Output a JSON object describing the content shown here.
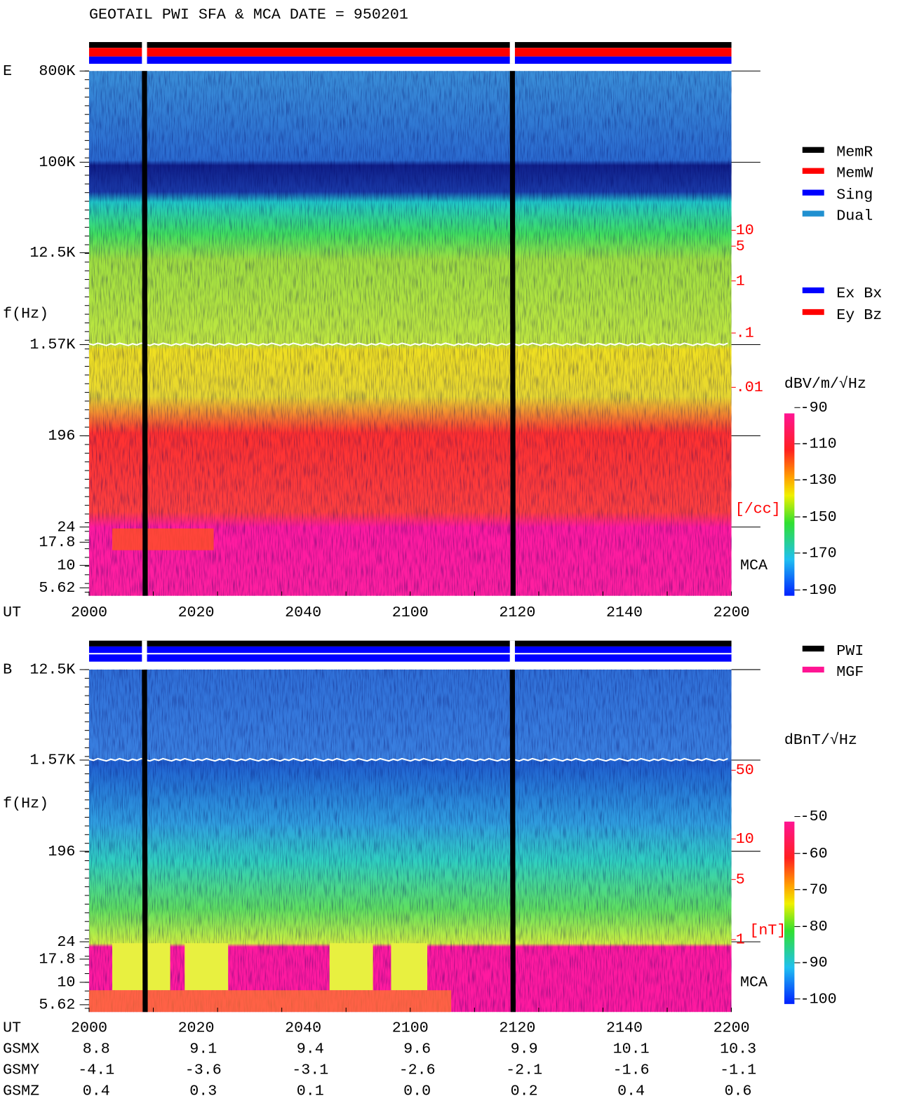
{
  "title": "GEOTAIL  PWI SFA & MCA   DATE = 950201",
  "panels": [
    {
      "component": "E",
      "y_label": "f(Hz)",
      "y_ticks": [
        "800K",
        "100K",
        "12.5K",
        "1.57K",
        "196",
        "24",
        "17.8",
        "10",
        "5.62"
      ],
      "x_label": "UT",
      "x_ticks": [
        "2000",
        "2020",
        "2040",
        "2100",
        "2120",
        "2140",
        "2200"
      ],
      "density_ticks": [
        "10",
        "5",
        "1",
        ".1",
        ".01"
      ],
      "density_unit": "[/cc]",
      "mca_label": "MCA",
      "legend": [
        {
          "name": "MemR",
          "color": "#000000"
        },
        {
          "name": "MemW",
          "color": "#ff0000"
        },
        {
          "name": "Sing",
          "color": "#0000ff"
        },
        {
          "name": "Dual",
          "color": "#2090d0"
        }
      ],
      "antenna_legend": [
        {
          "name": "Ex Bx",
          "color": "#0000ff"
        },
        {
          "name": "Ey Bz",
          "color": "#ff0000"
        }
      ],
      "colorbar_unit": "dBV/m/√Hz",
      "colorbar_ticks": [
        "-90",
        "-110",
        "-130",
        "-150",
        "-170",
        "-190"
      ]
    },
    {
      "component": "B",
      "y_label": "f(Hz)",
      "y_ticks": [
        "12.5K",
        "1.57K",
        "196",
        "24",
        "17.8",
        "10",
        "5.62"
      ],
      "x_label": "UT",
      "x_ticks": [
        "2000",
        "2020",
        "2040",
        "2100",
        "2120",
        "2140",
        "2200"
      ],
      "density_ticks": [
        "50",
        "10",
        "5",
        "1"
      ],
      "density_unit": "[nT]",
      "mca_label": "MCA",
      "legend": [
        {
          "name": "PWI",
          "color": "#000000"
        },
        {
          "name": "MGF",
          "color": "#ff1493"
        }
      ],
      "colorbar_unit": "dBnT/√Hz",
      "colorbar_ticks": [
        "-50",
        "-60",
        "-70",
        "-80",
        "-90",
        "-100"
      ]
    }
  ],
  "orbit": {
    "rows": [
      {
        "label": "GSMX",
        "values": [
          "8.8",
          "9.1",
          "9.4",
          "9.6",
          "9.9",
          "10.1",
          "10.3"
        ]
      },
      {
        "label": "GSMY",
        "values": [
          "-4.1",
          "-3.6",
          "-3.1",
          "-2.6",
          "-2.1",
          "-1.6",
          "-1.1"
        ]
      },
      {
        "label": "GSMZ",
        "values": [
          "0.4",
          "0.3",
          "0.1",
          "0.0",
          "0.2",
          "0.4",
          "0.6"
        ]
      }
    ]
  }
}
